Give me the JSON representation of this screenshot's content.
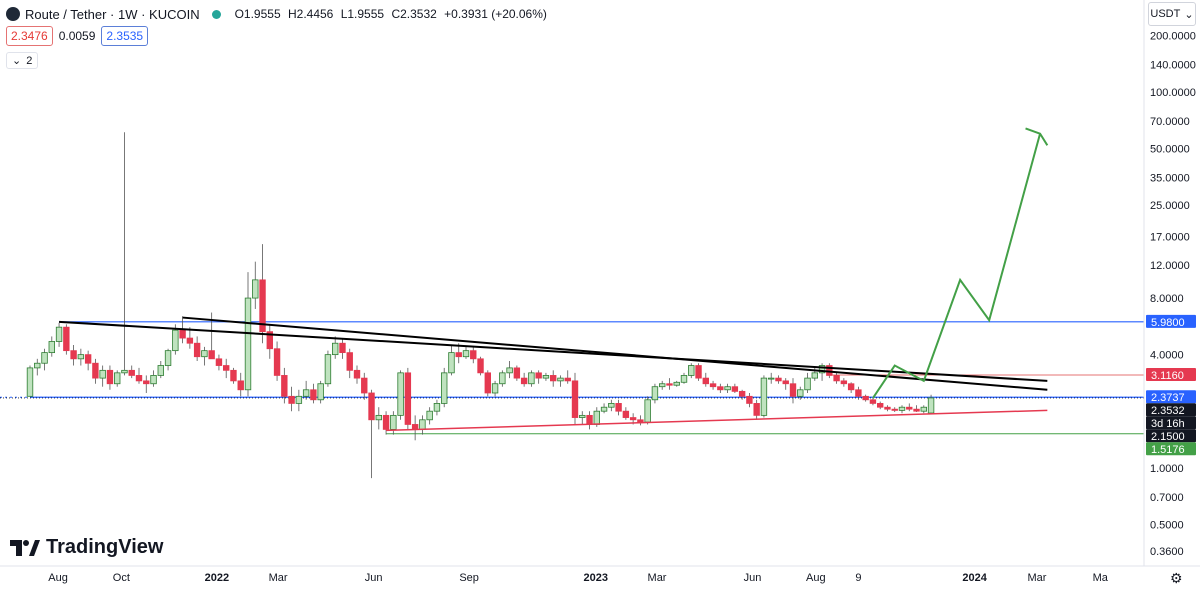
{
  "header": {
    "symbol": "Route / Tether · 1W · KUCOIN",
    "open": "O1.9555",
    "high": "H2.4456",
    "low": "L1.9555",
    "close": "C2.3532",
    "change": "+0.3931 (+20.06%)",
    "bid": "2.3476",
    "spread": "0.0059",
    "ask": "2.3535",
    "indicators_toggle": "2",
    "currency": "USDT"
  },
  "branding": {
    "logo_text": "TradingView",
    "logo_mark": "TV"
  },
  "colors": {
    "up": "#26a69a",
    "up_fill": "#bfe3bf",
    "up_border": "#2e7d32",
    "down": "#e53950",
    "blue_line": "#2962ff",
    "red_line": "#e53950",
    "green_line": "#43a047",
    "black_line": "#000000"
  },
  "chart_data": {
    "type": "candlestick",
    "log_scale": true,
    "x_axis": {
      "labels": [
        "Aug",
        "Oct",
        "2022",
        "Mar",
        "Jun",
        "Sep",
        "2023",
        "Mar",
        "Jun",
        "Aug",
        "9",
        "2024",
        "Mar",
        "Ma"
      ],
      "label_dates": [
        "2021-08-01",
        "2021-10-01",
        "2022-01-01",
        "2022-03-01",
        "2022-06-01",
        "2022-09-01",
        "2023-01-01",
        "2023-03-01",
        "2023-06-01",
        "2023-08-01",
        "2023-09-11",
        "2024-01-01",
        "2024-03-01",
        "2024-05-01"
      ],
      "range": [
        "2021-07-05",
        "2024-05-20"
      ]
    },
    "y_axis": {
      "ticks": [
        200,
        140,
        100,
        70,
        50,
        35,
        25,
        17,
        12,
        8,
        5.98,
        4,
        3.116,
        2.3737,
        2.3532,
        2.15,
        1.5176,
        1,
        0.7,
        0.5,
        0.36
      ],
      "tick_labels": [
        "200.0000",
        "140.0000",
        "100.0000",
        "70.0000",
        "50.0000",
        "35.0000",
        "25.0000",
        "17.0000",
        "12.0000",
        "8.0000",
        "5.9800",
        "4.0000",
        "3.1160",
        "2.3737",
        "2.3532",
        "2.1500",
        "1.5176",
        "1.0000",
        "0.7000",
        "0.5000",
        "0.3600"
      ],
      "range": [
        0.3,
        260
      ]
    },
    "price_tags": [
      {
        "label": "5.9800",
        "value": 5.98,
        "color": "#2962ff"
      },
      {
        "label": "3.1160",
        "value": 3.116,
        "color": "#e53950"
      },
      {
        "label": "2.3737",
        "value": 2.3737,
        "color": "#2962ff"
      },
      {
        "label": "2.3532",
        "value": 2.3532,
        "color": "#131722"
      },
      {
        "label": "3d 16h",
        "value": 2.253,
        "color": "#131722"
      },
      {
        "label": "2.1500",
        "value": 2.15,
        "color": "#131722"
      },
      {
        "label": "1.5176",
        "value": 1.5176,
        "color": "#43a047"
      }
    ],
    "hlines": [
      {
        "value": 5.98,
        "from": "2021-08-02",
        "color": "#2962ff",
        "width": 1.2,
        "dash": ""
      },
      {
        "value": 3.116,
        "from": "2023-08-14",
        "color": "#e57373",
        "width": 1,
        "dash": ""
      },
      {
        "value": 2.3737,
        "from": "2021-07-05",
        "color": "#2962ff",
        "width": 1.2,
        "dash": ""
      },
      {
        "value": 2.3737,
        "from": "2021-07-05",
        "color": "#2962ff",
        "width": 1,
        "dash": "2,3"
      },
      {
        "value": 2.3532,
        "from": "2023-09-25",
        "color": "#131722",
        "width": 0.8,
        "dash": "1,2"
      },
      {
        "value": 1.5176,
        "from": "2022-06-13",
        "color": "#43a047",
        "width": 1,
        "dash": ""
      }
    ],
    "trendlines": [
      {
        "from": [
          "2021-08-02",
          5.98
        ],
        "to": [
          "2024-03-11",
          2.9
        ],
        "color": "#000000",
        "width": 2
      },
      {
        "from": [
          "2021-11-29",
          6.3
        ],
        "to": [
          "2024-03-11",
          2.6
        ],
        "color": "#000000",
        "width": 2
      },
      {
        "from": [
          "2022-06-13",
          1.58
        ],
        "to": [
          "2024-03-11",
          2.02
        ],
        "color": "#e53950",
        "width": 1.5
      }
    ],
    "projection": {
      "points": [
        [
          "2023-09-25",
          2.35
        ],
        [
          "2023-10-16",
          3.5
        ],
        [
          "2023-11-13",
          2.9
        ],
        [
          "2023-12-18",
          10.0
        ],
        [
          "2024-01-15",
          6.1
        ],
        [
          "2024-03-04",
          60
        ]
      ],
      "arrowhead": [
        [
          "2024-02-19",
          64
        ],
        [
          "2024-03-04",
          60
        ],
        [
          "2024-03-11",
          52
        ]
      ],
      "color": "#43a047"
    },
    "candles": [
      [
        "2021-07-05",
        2.4,
        3.5,
        2.4,
        3.4
      ],
      [
        "2021-07-12",
        3.4,
        3.8,
        3.1,
        3.6
      ],
      [
        "2021-07-19",
        3.6,
        4.3,
        3.3,
        4.1
      ],
      [
        "2021-07-26",
        4.1,
        5.0,
        3.9,
        4.7
      ],
      [
        "2021-08-02",
        4.7,
        5.9,
        4.4,
        5.6
      ],
      [
        "2021-08-09",
        5.6,
        5.8,
        4.0,
        4.2
      ],
      [
        "2021-08-16",
        4.2,
        4.5,
        3.5,
        3.8
      ],
      [
        "2021-08-23",
        3.8,
        4.3,
        3.5,
        4.0
      ],
      [
        "2021-08-30",
        4.0,
        4.2,
        3.3,
        3.6
      ],
      [
        "2021-09-06",
        3.6,
        3.8,
        2.8,
        3.0
      ],
      [
        "2021-09-13",
        3.0,
        3.5,
        2.7,
        3.3
      ],
      [
        "2021-09-20",
        3.3,
        3.5,
        2.6,
        2.8
      ],
      [
        "2021-09-27",
        2.8,
        3.3,
        2.7,
        3.2
      ],
      [
        "2021-10-04",
        3.2,
        61,
        3.1,
        3.3
      ],
      [
        "2021-10-11",
        3.3,
        3.5,
        3.0,
        3.1
      ],
      [
        "2021-10-18",
        3.1,
        3.4,
        2.8,
        2.9
      ],
      [
        "2021-10-25",
        2.9,
        3.1,
        2.5,
        2.8
      ],
      [
        "2021-11-01",
        2.8,
        3.3,
        2.7,
        3.1
      ],
      [
        "2021-11-08",
        3.1,
        3.7,
        3.0,
        3.5
      ],
      [
        "2021-11-15",
        3.5,
        4.3,
        3.3,
        4.2
      ],
      [
        "2021-11-22",
        4.2,
        5.8,
        4.0,
        5.4
      ],
      [
        "2021-11-29",
        5.4,
        6.4,
        4.6,
        4.9
      ],
      [
        "2021-12-06",
        4.9,
        5.6,
        4.3,
        4.6
      ],
      [
        "2021-12-13",
        4.6,
        5.0,
        3.7,
        3.9
      ],
      [
        "2021-12-20",
        3.9,
        4.4,
        3.5,
        4.2
      ],
      [
        "2021-12-27",
        4.2,
        6.7,
        4.0,
        3.8
      ],
      [
        "2022-01-03",
        3.8,
        4.0,
        3.3,
        3.5
      ],
      [
        "2022-01-10",
        3.5,
        3.8,
        3.0,
        3.3
      ],
      [
        "2022-01-17",
        3.3,
        3.4,
        2.8,
        2.9
      ],
      [
        "2022-01-24",
        2.9,
        3.2,
        2.4,
        2.6
      ],
      [
        "2022-01-31",
        2.6,
        11,
        2.4,
        8.0
      ],
      [
        "2022-02-07",
        8.0,
        12.5,
        7.0,
        10.0
      ],
      [
        "2022-02-14",
        10.0,
        15.5,
        4.6,
        5.3
      ],
      [
        "2022-02-21",
        5.3,
        5.8,
        3.8,
        4.3
      ],
      [
        "2022-02-28",
        4.3,
        4.7,
        2.9,
        3.1
      ],
      [
        "2022-03-07",
        3.1,
        3.4,
        2.2,
        2.4
      ],
      [
        "2022-03-14",
        2.4,
        2.7,
        2.0,
        2.2
      ],
      [
        "2022-03-21",
        2.2,
        2.6,
        2.0,
        2.4
      ],
      [
        "2022-03-28",
        2.4,
        2.9,
        2.3,
        2.6
      ],
      [
        "2022-04-04",
        2.6,
        2.8,
        2.2,
        2.3
      ],
      [
        "2022-04-11",
        2.3,
        2.9,
        2.2,
        2.8
      ],
      [
        "2022-04-18",
        2.8,
        4.2,
        2.7,
        4.0
      ],
      [
        "2022-04-25",
        4.0,
        5.0,
        3.8,
        4.6
      ],
      [
        "2022-05-02",
        4.6,
        4.9,
        3.8,
        4.1
      ],
      [
        "2022-05-09",
        4.1,
        4.3,
        3.0,
        3.3
      ],
      [
        "2022-05-16",
        3.3,
        3.5,
        2.8,
        3.0
      ],
      [
        "2022-05-23",
        3.0,
        3.2,
        2.3,
        2.5
      ],
      [
        "2022-05-30",
        2.5,
        2.6,
        0.88,
        1.8
      ],
      [
        "2022-06-06",
        1.8,
        2.1,
        1.6,
        1.9
      ],
      [
        "2022-06-13",
        1.9,
        2.0,
        1.5,
        1.6
      ],
      [
        "2022-06-20",
        1.6,
        2.0,
        1.5,
        1.9
      ],
      [
        "2022-06-27",
        1.9,
        3.3,
        1.8,
        3.2
      ],
      [
        "2022-07-04",
        3.2,
        3.4,
        1.6,
        1.7
      ],
      [
        "2022-07-11",
        1.7,
        1.9,
        1.4,
        1.6
      ],
      [
        "2022-07-18",
        1.6,
        1.9,
        1.5,
        1.8
      ],
      [
        "2022-07-25",
        1.8,
        2.1,
        1.7,
        2.0
      ],
      [
        "2022-08-01",
        2.0,
        2.3,
        1.9,
        2.2
      ],
      [
        "2022-08-08",
        2.2,
        3.4,
        2.1,
        3.2
      ],
      [
        "2022-08-15",
        3.2,
        4.5,
        3.1,
        4.1
      ],
      [
        "2022-08-22",
        4.1,
        4.6,
        3.6,
        3.9
      ],
      [
        "2022-08-29",
        3.9,
        4.4,
        3.8,
        4.2
      ],
      [
        "2022-09-05",
        4.2,
        4.4,
        3.6,
        3.8
      ],
      [
        "2022-09-12",
        3.8,
        3.9,
        3.1,
        3.2
      ],
      [
        "2022-09-19",
        3.2,
        3.3,
        2.4,
        2.5
      ],
      [
        "2022-09-26",
        2.5,
        2.9,
        2.4,
        2.8
      ],
      [
        "2022-10-03",
        2.8,
        3.3,
        2.7,
        3.2
      ],
      [
        "2022-10-10",
        3.2,
        3.7,
        3.0,
        3.4
      ],
      [
        "2022-10-17",
        3.4,
        3.5,
        2.9,
        3.0
      ],
      [
        "2022-10-24",
        3.0,
        3.2,
        2.7,
        2.8
      ],
      [
        "2022-10-31",
        2.8,
        3.3,
        2.7,
        3.2
      ],
      [
        "2022-11-07",
        3.2,
        3.3,
        2.8,
        3.0
      ],
      [
        "2022-11-14",
        3.0,
        3.2,
        2.9,
        3.1
      ],
      [
        "2022-11-21",
        3.1,
        3.3,
        2.7,
        2.9
      ],
      [
        "2022-11-28",
        2.9,
        3.1,
        2.7,
        3.0
      ],
      [
        "2022-12-05",
        3.0,
        3.3,
        2.8,
        2.9
      ],
      [
        "2022-12-12",
        2.9,
        3.2,
        1.7,
        1.85
      ],
      [
        "2022-12-19",
        1.85,
        2.0,
        1.7,
        1.9
      ],
      [
        "2022-12-26",
        1.9,
        2.0,
        1.6,
        1.7
      ],
      [
        "2023-01-02",
        1.7,
        2.1,
        1.65,
        2.0
      ],
      [
        "2023-01-09",
        2.0,
        2.2,
        1.95,
        2.1
      ],
      [
        "2023-01-16",
        2.1,
        2.3,
        2.0,
        2.2
      ],
      [
        "2023-01-23",
        2.2,
        2.3,
        1.9,
        2.0
      ],
      [
        "2023-01-30",
        2.0,
        2.1,
        1.8,
        1.85
      ],
      [
        "2023-02-06",
        1.85,
        1.95,
        1.7,
        1.8
      ],
      [
        "2023-02-13",
        1.8,
        1.9,
        1.68,
        1.75
      ],
      [
        "2023-02-20",
        1.75,
        2.4,
        1.7,
        2.3
      ],
      [
        "2023-02-27",
        2.3,
        2.8,
        2.2,
        2.7
      ],
      [
        "2023-03-06",
        2.7,
        2.9,
        2.6,
        2.8
      ],
      [
        "2023-03-13",
        2.8,
        3.0,
        2.6,
        2.75
      ],
      [
        "2023-03-20",
        2.75,
        2.9,
        2.7,
        2.85
      ],
      [
        "2023-03-27",
        2.85,
        3.2,
        2.8,
        3.1
      ],
      [
        "2023-04-03",
        3.1,
        3.6,
        3.0,
        3.5
      ],
      [
        "2023-04-10",
        3.5,
        3.6,
        2.9,
        3.0
      ],
      [
        "2023-04-17",
        3.0,
        3.2,
        2.7,
        2.8
      ],
      [
        "2023-04-24",
        2.8,
        2.9,
        2.6,
        2.7
      ],
      [
        "2023-05-01",
        2.7,
        2.8,
        2.5,
        2.6
      ],
      [
        "2023-05-08",
        2.6,
        2.8,
        2.5,
        2.7
      ],
      [
        "2023-05-15",
        2.7,
        2.8,
        2.5,
        2.55
      ],
      [
        "2023-05-22",
        2.55,
        2.6,
        2.3,
        2.4
      ],
      [
        "2023-05-29",
        2.4,
        2.5,
        2.1,
        2.2
      ],
      [
        "2023-06-05",
        2.2,
        2.3,
        1.8,
        1.9
      ],
      [
        "2023-06-12",
        1.9,
        3.1,
        1.85,
        3.0
      ],
      [
        "2023-06-19",
        3.0,
        3.2,
        2.8,
        3.0
      ],
      [
        "2023-06-26",
        3.0,
        3.1,
        2.8,
        2.9
      ],
      [
        "2023-07-03",
        2.9,
        3.0,
        2.6,
        2.8
      ],
      [
        "2023-07-10",
        2.8,
        3.0,
        2.2,
        2.4
      ],
      [
        "2023-07-17",
        2.4,
        2.7,
        2.3,
        2.6
      ],
      [
        "2023-07-24",
        2.6,
        3.2,
        2.5,
        3.0
      ],
      [
        "2023-07-31",
        3.0,
        3.4,
        2.9,
        3.2
      ],
      [
        "2023-08-07",
        3.2,
        3.6,
        2.9,
        3.5
      ],
      [
        "2023-08-14",
        3.5,
        3.6,
        3.0,
        3.1
      ],
      [
        "2023-08-21",
        3.1,
        3.2,
        2.8,
        2.9
      ],
      [
        "2023-08-28",
        2.9,
        3.0,
        2.7,
        2.8
      ],
      [
        "2023-09-04",
        2.8,
        2.85,
        2.5,
        2.6
      ],
      [
        "2023-09-11",
        2.6,
        2.7,
        2.3,
        2.4
      ],
      [
        "2023-09-18",
        2.4,
        2.45,
        2.25,
        2.3
      ],
      [
        "2023-09-25",
        2.3,
        2.35,
        2.15,
        2.2
      ],
      [
        "2023-10-02",
        2.2,
        2.25,
        2.05,
        2.1
      ],
      [
        "2023-10-09",
        2.1,
        2.15,
        2.0,
        2.05
      ],
      [
        "2023-10-16",
        2.05,
        2.1,
        1.98,
        2.02
      ],
      [
        "2023-10-23",
        2.02,
        2.15,
        1.95,
        2.1
      ],
      [
        "2023-10-30",
        2.1,
        2.2,
        2.0,
        2.05
      ],
      [
        "2023-11-06",
        2.05,
        2.15,
        1.98,
        2.0
      ],
      [
        "2023-11-13",
        2.0,
        2.15,
        1.95,
        2.1
      ],
      [
        "2023-11-20",
        1.9555,
        2.4456,
        1.9555,
        2.3532
      ]
    ]
  }
}
